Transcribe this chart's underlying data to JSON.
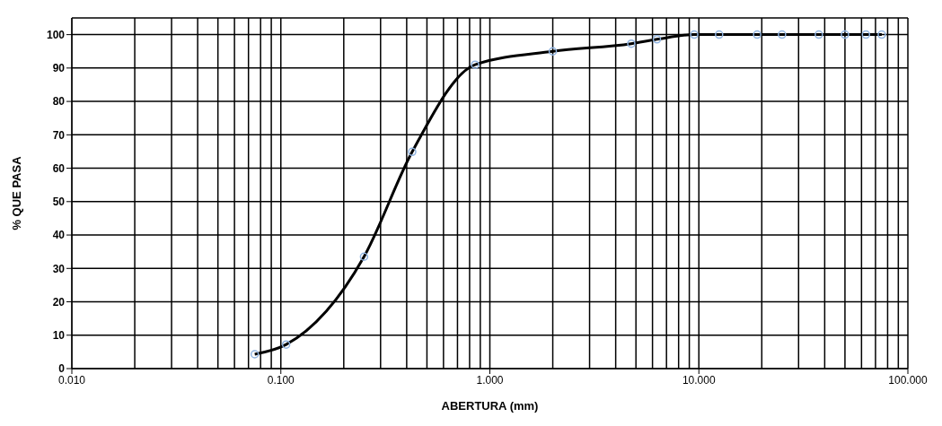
{
  "chart_data": {
    "type": "line",
    "xlabel": "ABERTURA (mm)",
    "ylabel": "% QUE PASA",
    "x": [
      0.075,
      0.106,
      0.25,
      0.425,
      0.85,
      2.0,
      4.75,
      6.3,
      9.5,
      12.5,
      19,
      25,
      37.5,
      50,
      63,
      75
    ],
    "series": [
      {
        "color": "#000000",
        "values": [
          4.3,
          7.2,
          33.5,
          64.9,
          91,
          95,
          97.3,
          98.6,
          100,
          100,
          100,
          100,
          100,
          100,
          100,
          100
        ]
      }
    ],
    "log": "x",
    "xlim": [
      0.01,
      100
    ],
    "xticks": [
      {
        "value": 0.01,
        "label": "0.010"
      },
      {
        "value": 0.1,
        "label": "0.100"
      },
      {
        "value": 1,
        "label": "1.000"
      },
      {
        "value": 10,
        "label": "10.000"
      },
      {
        "value": 100,
        "label": "100.000"
      }
    ],
    "ylim": [
      0,
      105
    ],
    "yticks": [
      0,
      10,
      20,
      30,
      40,
      50,
      60,
      70,
      80,
      90,
      100
    ],
    "grid": true,
    "marker": "circle",
    "line_style": "solid",
    "legend": false
  }
}
